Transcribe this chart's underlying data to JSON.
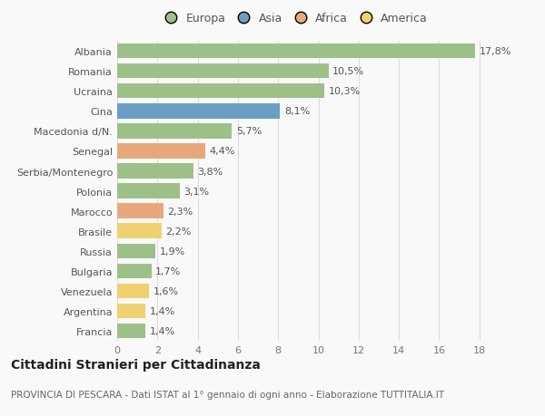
{
  "countries": [
    "Albania",
    "Romania",
    "Ucraina",
    "Cina",
    "Macedonia d/N.",
    "Senegal",
    "Serbia/Montenegro",
    "Polonia",
    "Marocco",
    "Brasile",
    "Russia",
    "Bulgaria",
    "Venezuela",
    "Argentina",
    "Francia"
  ],
  "values": [
    17.8,
    10.5,
    10.3,
    8.1,
    5.7,
    4.4,
    3.8,
    3.1,
    2.3,
    2.2,
    1.9,
    1.7,
    1.6,
    1.4,
    1.4
  ],
  "labels": [
    "17,8%",
    "10,5%",
    "10,3%",
    "8,1%",
    "5,7%",
    "4,4%",
    "3,8%",
    "3,1%",
    "2,3%",
    "2,2%",
    "1,9%",
    "1,7%",
    "1,6%",
    "1,4%",
    "1,4%"
  ],
  "continents": [
    "Europa",
    "Europa",
    "Europa",
    "Asia",
    "Europa",
    "Africa",
    "Europa",
    "Europa",
    "Africa",
    "America",
    "Europa",
    "Europa",
    "America",
    "America",
    "Europa"
  ],
  "colors": {
    "Europa": "#9dc088",
    "Asia": "#6a9ec5",
    "Africa": "#e8a87c",
    "America": "#f0d070"
  },
  "title": "Cittadini Stranieri per Cittadinanza",
  "subtitle": "PROVINCIA DI PESCARA - Dati ISTAT al 1° gennaio di ogni anno - Elaborazione TUTTITALIA.IT",
  "xlabel_ticks": [
    0,
    2,
    4,
    6,
    8,
    10,
    12,
    14,
    16,
    18
  ],
  "xlim": [
    0,
    19.5
  ],
  "background_color": "#f9f9f9",
  "grid_color": "#dddddd",
  "bar_height": 0.75,
  "label_fontsize": 8,
  "tick_fontsize": 8,
  "title_fontsize": 10,
  "subtitle_fontsize": 7.5
}
